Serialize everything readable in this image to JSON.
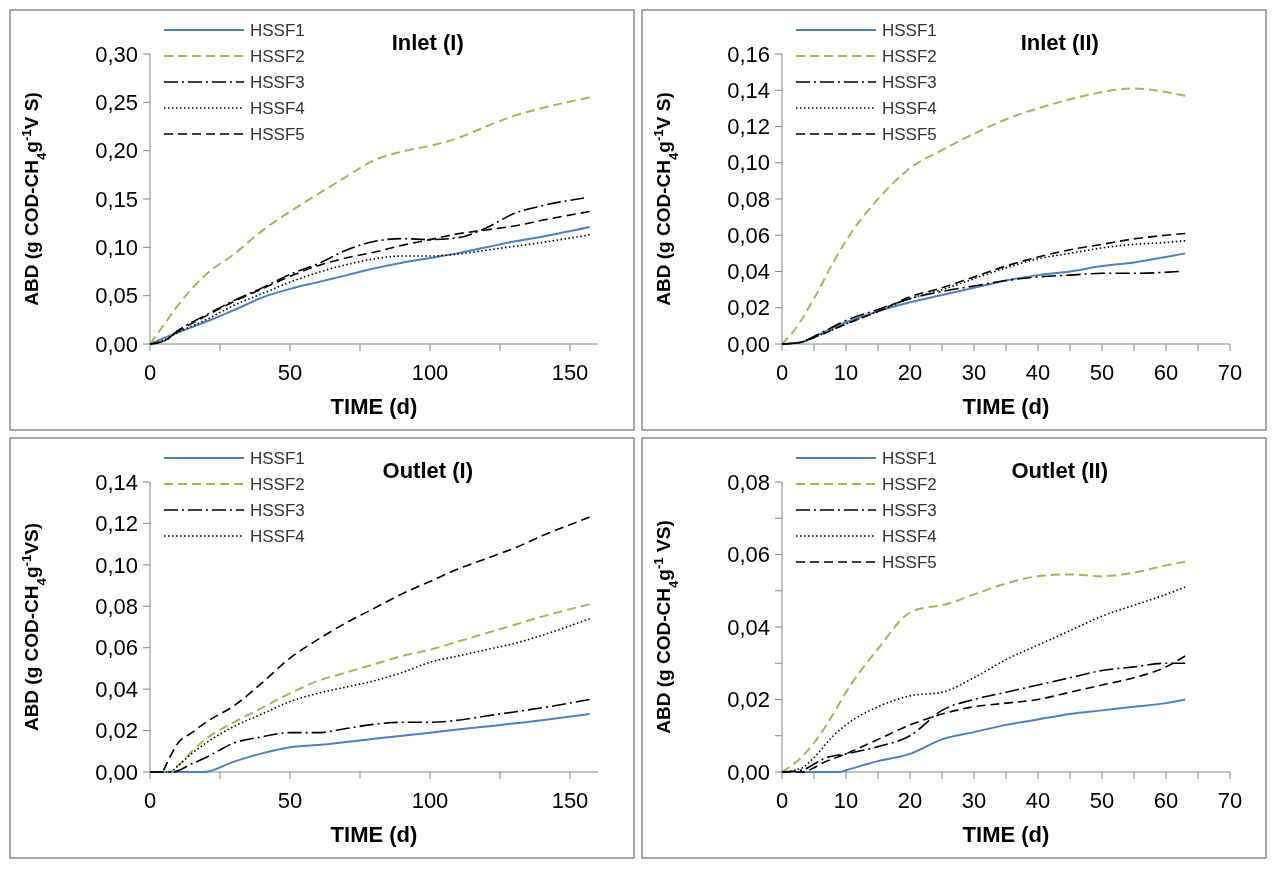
{
  "chart_data": [
    {
      "type": "line",
      "title": "Inlet (I)",
      "xlabel": "TIME (d)",
      "ylabel": "ABD (g COD-CH$_{4}$g$^{-1}$V S)",
      "xlim": [
        0,
        160
      ],
      "xticks": [
        0,
        {
          "value": 25,
          "label": null
        },
        50,
        {
          "value": 75,
          "label": null
        },
        100,
        {
          "value": 125,
          "label": null
        },
        150
      ],
      "ylim": [
        0,
        0.3
      ],
      "yticks": [
        {
          "value": 0,
          "label": "0,00"
        },
        {
          "value": 0.05,
          "label": "0,05"
        },
        {
          "value": 0.1,
          "label": "0,10"
        },
        {
          "value": 0.15,
          "label": "0,15"
        },
        {
          "value": 0.2,
          "label": "0,20"
        },
        {
          "value": 0.25,
          "label": "0,25"
        },
        {
          "value": 0.3,
          "label": "0,30"
        }
      ],
      "grid": false,
      "legend": "top left",
      "marker": "none",
      "series": [
        {
          "name": "HSSF1",
          "color": "#4f81bd",
          "line_style": "solid",
          "x": [
            0,
            10,
            20,
            30,
            40,
            50,
            60,
            70,
            80,
            90,
            100,
            110,
            120,
            130,
            140,
            157
          ],
          "values": [
            0,
            0.012,
            0.023,
            0.035,
            0.048,
            0.057,
            0.064,
            0.071,
            0.078,
            0.084,
            0.089,
            0.094,
            0.1,
            0.106,
            0.111,
            0.121
          ]
        },
        {
          "name": "HSSF2",
          "color": "#9bbb59",
          "line_style": "dashed",
          "x": [
            0,
            5,
            10,
            20,
            30,
            40,
            50,
            60,
            70,
            80,
            90,
            100,
            110,
            120,
            130,
            140,
            157
          ],
          "values": [
            0,
            0.02,
            0.04,
            0.072,
            0.093,
            0.117,
            0.137,
            0.155,
            0.173,
            0.19,
            0.199,
            0.205,
            0.213,
            0.225,
            0.236,
            0.244,
            0.255
          ]
        },
        {
          "name": "HSSF3",
          "color": "#000000",
          "line_style": "dashdot",
          "x": [
            0,
            5,
            10,
            20,
            30,
            40,
            50,
            60,
            70,
            80,
            90,
            100,
            110,
            120,
            130,
            140,
            155
          ],
          "values": [
            0,
            0.003,
            0.014,
            0.03,
            0.045,
            0.058,
            0.072,
            0.083,
            0.097,
            0.106,
            0.109,
            0.108,
            0.11,
            0.12,
            0.135,
            0.143,
            0.151
          ]
        },
        {
          "name": "HSSF4",
          "color": "#000000",
          "line_style": "dotted",
          "x": [
            0,
            5,
            10,
            20,
            30,
            40,
            50,
            60,
            70,
            80,
            90,
            100,
            110,
            120,
            130,
            140,
            157
          ],
          "values": [
            0,
            0.004,
            0.012,
            0.025,
            0.04,
            0.052,
            0.064,
            0.074,
            0.082,
            0.088,
            0.091,
            0.091,
            0.093,
            0.097,
            0.101,
            0.105,
            0.113
          ]
        },
        {
          "name": "HSSF5",
          "color": "#000000",
          "line_style": "dashed",
          "x": [
            0,
            5,
            10,
            20,
            30,
            40,
            50,
            60,
            70,
            80,
            90,
            100,
            110,
            120,
            130,
            140,
            157
          ],
          "values": [
            0,
            0.003,
            0.013,
            0.029,
            0.044,
            0.057,
            0.07,
            0.081,
            0.089,
            0.095,
            0.102,
            0.108,
            0.114,
            0.118,
            0.122,
            0.128,
            0.137
          ]
        }
      ]
    },
    {
      "type": "line",
      "title": "Inlet (II)",
      "xlabel": "TIME (d)",
      "ylabel": "ABD (g COD-CH$_{4}$g$^{-1}$V S)",
      "xlim": [
        0,
        70
      ],
      "xticks": [
        0,
        {
          "value": 5,
          "label": null
        },
        10,
        {
          "value": 15,
          "label": null
        },
        20,
        {
          "value": 25,
          "label": null
        },
        30,
        {
          "value": 35,
          "label": null
        },
        40,
        {
          "value": 45,
          "label": null
        },
        50,
        {
          "value": 55,
          "label": null
        },
        60,
        {
          "value": 65,
          "label": null
        },
        70
      ],
      "ylim": [
        0,
        0.16
      ],
      "yticks": [
        {
          "value": 0,
          "label": "0,00"
        },
        {
          "value": 0.02,
          "label": "0,02"
        },
        {
          "value": 0.04,
          "label": "0,04"
        },
        {
          "value": 0.06,
          "label": "0,06"
        },
        {
          "value": 0.08,
          "label": "0,08"
        },
        {
          "value": 0.1,
          "label": "0,10"
        },
        {
          "value": 0.12,
          "label": "0,12"
        },
        {
          "value": 0.14,
          "label": "0,14"
        },
        {
          "value": 0.16,
          "label": "0,16"
        }
      ],
      "grid": false,
      "legend": "top left",
      "marker": "none",
      "series": [
        {
          "name": "HSSF1",
          "color": "#4f81bd",
          "line_style": "solid",
          "x": [
            0,
            3,
            5,
            10,
            15,
            20,
            25,
            30,
            35,
            40,
            45,
            50,
            55,
            60,
            63
          ],
          "values": [
            0,
            0.001,
            0.004,
            0.012,
            0.018,
            0.023,
            0.027,
            0.031,
            0.035,
            0.038,
            0.04,
            0.043,
            0.045,
            0.048,
            0.05
          ]
        },
        {
          "name": "HSSF2",
          "color": "#9bbb59",
          "line_style": "dashed",
          "x": [
            0,
            2,
            5,
            8,
            10,
            15,
            20,
            25,
            30,
            35,
            40,
            45,
            50,
            55,
            60,
            63
          ],
          "values": [
            0,
            0.008,
            0.025,
            0.045,
            0.057,
            0.08,
            0.097,
            0.107,
            0.116,
            0.124,
            0.13,
            0.135,
            0.139,
            0.141,
            0.139,
            0.137
          ]
        },
        {
          "name": "HSSF3",
          "color": "#000000",
          "line_style": "dashdot",
          "x": [
            0,
            3,
            6,
            10,
            15,
            20,
            25,
            30,
            35,
            40,
            45,
            50,
            55,
            62
          ],
          "values": [
            0,
            0.001,
            0.006,
            0.013,
            0.019,
            0.025,
            0.029,
            0.032,
            0.035,
            0.037,
            0.038,
            0.039,
            0.039,
            0.04
          ]
        },
        {
          "name": "HSSF4",
          "color": "#000000",
          "line_style": "dotted",
          "x": [
            0,
            3,
            6,
            10,
            15,
            20,
            25,
            30,
            35,
            40,
            45,
            50,
            55,
            60,
            63
          ],
          "values": [
            0,
            0.001,
            0.005,
            0.011,
            0.018,
            0.025,
            0.03,
            0.036,
            0.042,
            0.047,
            0.05,
            0.053,
            0.055,
            0.056,
            0.057
          ]
        },
        {
          "name": "HSSF5",
          "color": "#000000",
          "line_style": "dashed",
          "x": [
            0,
            3,
            6,
            10,
            15,
            20,
            25,
            30,
            35,
            40,
            45,
            50,
            55,
            60,
            63
          ],
          "values": [
            0,
            0.001,
            0.005,
            0.011,
            0.018,
            0.026,
            0.031,
            0.037,
            0.043,
            0.048,
            0.052,
            0.055,
            0.058,
            0.06,
            0.061
          ]
        }
      ]
    },
    {
      "type": "line",
      "title": "Outlet (I)",
      "xlabel": "TIME (d)",
      "ylabel": "ABD (g COD-CH$_{4}$g$^{-1}$VS)",
      "xlim": [
        0,
        160
      ],
      "xticks": [
        0,
        {
          "value": 25,
          "label": null
        },
        50,
        {
          "value": 75,
          "label": null
        },
        100,
        {
          "value": 125,
          "label": null
        },
        150
      ],
      "ylim": [
        0,
        0.14
      ],
      "yticks": [
        {
          "value": 0,
          "label": "0,00"
        },
        {
          "value": 0.02,
          "label": "0,02"
        },
        {
          "value": 0.04,
          "label": "0,04"
        },
        {
          "value": 0.06,
          "label": "0,06"
        },
        {
          "value": 0.08,
          "label": "0,08"
        },
        {
          "value": 0.1,
          "label": "0,10"
        },
        {
          "value": 0.12,
          "label": "0,12"
        },
        {
          "value": 0.14,
          "label": "0,14"
        }
      ],
      "grid": false,
      "legend": "top left",
      "marker": "none",
      "series": [
        {
          "name": "HSSF1",
          "color": "#4f81bd",
          "line_style": "solid",
          "x": [
            0,
            19,
            30,
            40,
            50,
            60,
            80,
            100,
            120,
            140,
            157
          ],
          "values": [
            0,
            0,
            0.005,
            0.009,
            0.012,
            0.013,
            0.016,
            0.019,
            0.022,
            0.025,
            0.028
          ]
        },
        {
          "name": "HSSF2",
          "color": "#9bbb59",
          "line_style": "dashed",
          "x": [
            0,
            7,
            10,
            15,
            20,
            30,
            40,
            50,
            60,
            70,
            80,
            90,
            100,
            110,
            120,
            130,
            140,
            157
          ],
          "values": [
            0,
            0,
            0.003,
            0.01,
            0.016,
            0.024,
            0.031,
            0.038,
            0.044,
            0.048,
            0.052,
            0.056,
            0.059,
            0.063,
            0.067,
            0.071,
            0.075,
            0.081
          ]
        },
        {
          "name": "HSSF3",
          "color": "#000000",
          "line_style": "dashdot",
          "x": [
            0,
            8,
            15,
            20,
            30,
            40,
            50,
            60,
            70,
            80,
            90,
            100,
            110,
            120,
            130,
            140,
            157
          ],
          "values": [
            0,
            0,
            0.004,
            0.007,
            0.014,
            0.017,
            0.019,
            0.019,
            0.021,
            0.023,
            0.024,
            0.024,
            0.025,
            0.027,
            0.029,
            0.031,
            0.035
          ]
        },
        {
          "name": "HSSF4",
          "color": "#000000",
          "line_style": "dotted",
          "x": [
            0,
            7,
            10,
            15,
            20,
            30,
            40,
            50,
            60,
            70,
            80,
            90,
            100,
            110,
            120,
            130,
            140,
            157
          ],
          "values": [
            0,
            0,
            0.003,
            0.009,
            0.014,
            0.022,
            0.028,
            0.034,
            0.038,
            0.041,
            0.044,
            0.048,
            0.053,
            0.056,
            0.059,
            0.062,
            0.066,
            0.074
          ]
        },
        {
          "color": "#000000",
          "line_style": "dashed",
          "x": [
            0,
            4,
            7,
            10,
            15,
            20,
            30,
            40,
            50,
            60,
            70,
            80,
            90,
            100,
            110,
            120,
            130,
            140,
            157
          ],
          "values": [
            0,
            0,
            0.007,
            0.014,
            0.019,
            0.024,
            0.032,
            0.043,
            0.055,
            0.064,
            0.072,
            0.079,
            0.086,
            0.092,
            0.098,
            0.103,
            0.108,
            0.114,
            0.123
          ]
        }
      ]
    },
    {
      "type": "line",
      "title": "Outlet (II)",
      "xlabel": "TIME (d)",
      "ylabel": "ABD (g COD-CH$_{4}$g$^{-1}$ VS)",
      "xlim": [
        0,
        70
      ],
      "xticks": [
        0,
        {
          "value": 5,
          "label": null
        },
        10,
        {
          "value": 15,
          "label": null
        },
        20,
        {
          "value": 25,
          "label": null
        },
        30,
        {
          "value": 35,
          "label": null
        },
        40,
        {
          "value": 45,
          "label": null
        },
        50,
        {
          "value": 55,
          "label": null
        },
        60,
        {
          "value": 65,
          "label": null
        },
        70
      ],
      "ylim": [
        0,
        0.08
      ],
      "yticks": [
        {
          "value": 0,
          "label": "0,00"
        },
        {
          "value": 0.01,
          "label": null
        },
        {
          "value": 0.02,
          "label": "0,02"
        },
        {
          "value": 0.03,
          "label": null
        },
        {
          "value": 0.04,
          "label": "0,04"
        },
        {
          "value": 0.05,
          "label": null
        },
        {
          "value": 0.06,
          "label": "0,06"
        },
        {
          "value": 0.07,
          "label": null
        },
        {
          "value": 0.08,
          "label": "0,08"
        }
      ],
      "grid": false,
      "legend": "top left",
      "marker": "none",
      "series": [
        {
          "name": "HSSF1",
          "color": "#4f81bd",
          "line_style": "solid",
          "x": [
            0,
            9,
            10,
            15,
            20,
            25,
            30,
            35,
            40,
            45,
            50,
            55,
            60,
            63
          ],
          "values": [
            0,
            0,
            0.0005,
            0.003,
            0.005,
            0.009,
            0.011,
            0.013,
            0.0145,
            0.016,
            0.017,
            0.018,
            0.019,
            0.02
          ]
        },
        {
          "name": "HSSF2",
          "color": "#9bbb59",
          "line_style": "dashed",
          "x": [
            0,
            3,
            5,
            8,
            10,
            15,
            20,
            23,
            25,
            30,
            35,
            40,
            45,
            50,
            55,
            60,
            63
          ],
          "values": [
            0,
            0.004,
            0.008,
            0.016,
            0.022,
            0.034,
            0.044,
            0.0455,
            0.046,
            0.049,
            0.052,
            0.054,
            0.0545,
            0.054,
            0.055,
            0.057,
            0.058
          ]
        },
        {
          "name": "HSSF3",
          "color": "#000000",
          "line_style": "dashdot",
          "x": [
            0,
            3,
            7,
            10,
            15,
            20,
            25,
            30,
            35,
            40,
            45,
            50,
            55,
            60,
            63
          ],
          "values": [
            0,
            0.0005,
            0.004,
            0.005,
            0.007,
            0.01,
            0.017,
            0.02,
            0.022,
            0.024,
            0.026,
            0.028,
            0.029,
            0.03,
            0.03
          ]
        },
        {
          "name": "HSSF4",
          "color": "#000000",
          "line_style": "dotted",
          "x": [
            0,
            3,
            5,
            8,
            10,
            15,
            20,
            25,
            30,
            35,
            40,
            45,
            50,
            55,
            60,
            63
          ],
          "values": [
            0,
            0.001,
            0.004,
            0.01,
            0.013,
            0.018,
            0.021,
            0.022,
            0.026,
            0.031,
            0.035,
            0.039,
            0.043,
            0.046,
            0.049,
            0.051
          ]
        },
        {
          "name": "HSSF5",
          "color": "#000000",
          "line_style": "dashed",
          "x": [
            0,
            3,
            7,
            10,
            15,
            20,
            25,
            30,
            35,
            40,
            45,
            50,
            55,
            60,
            63
          ],
          "values": [
            0,
            0,
            0.003,
            0.005,
            0.009,
            0.013,
            0.016,
            0.018,
            0.019,
            0.02,
            0.022,
            0.024,
            0.026,
            0.029,
            0.032
          ]
        }
      ]
    }
  ]
}
